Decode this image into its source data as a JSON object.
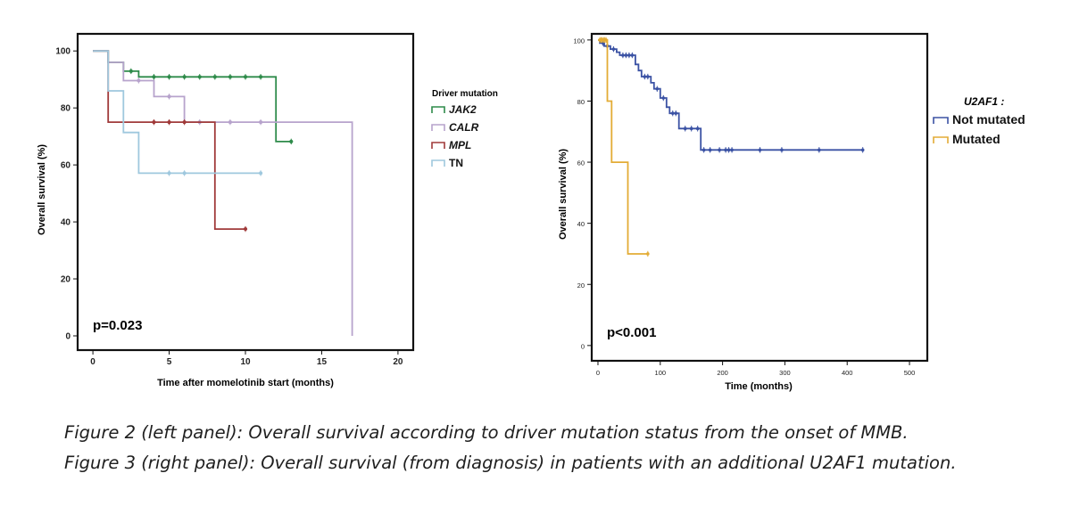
{
  "chart_data": [
    {
      "type": "line",
      "subtype": "kaplan-meier",
      "title": "",
      "xlabel": "Time after momelotinib start (months)",
      "ylabel": "Overall survival (%)",
      "xlim": [
        -1,
        21
      ],
      "ylim": [
        -5,
        106
      ],
      "xticks": [
        0,
        5,
        10,
        15,
        20
      ],
      "yticks": [
        0,
        20,
        40,
        60,
        80,
        100
      ],
      "grid": false,
      "legend_title": "Driver mutation",
      "legend_position": "right-outside",
      "annotation": "p=0.023",
      "series": [
        {
          "name": "JAK2",
          "color": "#2e8b4a",
          "steps": [
            [
              0,
              100
            ],
            [
              1,
              100
            ],
            [
              1,
              96
            ],
            [
              2,
              96
            ],
            [
              2,
              92.9
            ],
            [
              3,
              92.9
            ],
            [
              3,
              90.9
            ],
            [
              12,
              90.9
            ],
            [
              12,
              68.2
            ],
            [
              13,
              68.2
            ]
          ],
          "censors": [
            [
              2.5,
              92.9
            ],
            [
              4,
              90.9
            ],
            [
              5,
              90.9
            ],
            [
              6,
              90.9
            ],
            [
              7,
              90.9
            ],
            [
              8,
              90.9
            ],
            [
              9,
              90.9
            ],
            [
              10,
              90.9
            ],
            [
              11,
              90.9
            ],
            [
              13,
              68.2
            ]
          ]
        },
        {
          "name": "CALR",
          "color": "#b7a3cc",
          "steps": [
            [
              0,
              100
            ],
            [
              1,
              100
            ],
            [
              1,
              96
            ],
            [
              2,
              96
            ],
            [
              2,
              89.6
            ],
            [
              4,
              89.6
            ],
            [
              4,
              84
            ],
            [
              6,
              84
            ],
            [
              6,
              75
            ],
            [
              17,
              75
            ],
            [
              17,
              0
            ]
          ],
          "censors": [
            [
              3,
              89.6
            ],
            [
              5,
              84
            ],
            [
              7,
              75
            ],
            [
              9,
              75
            ],
            [
              11,
              75
            ]
          ]
        },
        {
          "name": "MPL",
          "color": "#a03a3a",
          "steps": [
            [
              0,
              100
            ],
            [
              1,
              100
            ],
            [
              1,
              75
            ],
            [
              8,
              75
            ],
            [
              8,
              37.5
            ],
            [
              10,
              37.5
            ]
          ],
          "censors": [
            [
              4,
              75
            ],
            [
              5,
              75
            ],
            [
              6,
              75
            ],
            [
              10,
              37.5
            ]
          ]
        },
        {
          "name": "TN",
          "color": "#9fc8de",
          "steps": [
            [
              0,
              100
            ],
            [
              1,
              100
            ],
            [
              1,
              86
            ],
            [
              2,
              86
            ],
            [
              2,
              71.4
            ],
            [
              3,
              71.4
            ],
            [
              3,
              57.1
            ],
            [
              11,
              57.1
            ]
          ],
          "censors": [
            [
              5,
              57.1
            ],
            [
              6,
              57.1
            ],
            [
              11,
              57.1
            ]
          ]
        }
      ]
    },
    {
      "type": "line",
      "subtype": "kaplan-meier",
      "title": "",
      "xlabel": "Time (months)",
      "ylabel": "Overall survival (%)",
      "xlim": [
        -10,
        520
      ],
      "ylim": [
        -5,
        102
      ],
      "xticks": [
        0,
        100,
        200,
        300,
        400,
        500
      ],
      "yticks": [
        0,
        20,
        40,
        60,
        80,
        100
      ],
      "grid": false,
      "legend_title": "U2AF1 :",
      "legend_position": "right-outside",
      "annotation": "p<0.001",
      "series": [
        {
          "name": "Not mutated",
          "color": "#3b52a4",
          "steps": [
            [
              0,
              100
            ],
            [
              3,
              100
            ],
            [
              3,
              99
            ],
            [
              10,
              99
            ],
            [
              10,
              98
            ],
            [
              20,
              98
            ],
            [
              20,
              97
            ],
            [
              30,
              97
            ],
            [
              30,
              96
            ],
            [
              35,
              96
            ],
            [
              35,
              95
            ],
            [
              60,
              95
            ],
            [
              60,
              92
            ],
            [
              65,
              92
            ],
            [
              65,
              90
            ],
            [
              70,
              90
            ],
            [
              70,
              88
            ],
            [
              85,
              88
            ],
            [
              85,
              86
            ],
            [
              90,
              86
            ],
            [
              90,
              84
            ],
            [
              100,
              84
            ],
            [
              100,
              81
            ],
            [
              110,
              81
            ],
            [
              110,
              78
            ],
            [
              115,
              78
            ],
            [
              115,
              76
            ],
            [
              130,
              76
            ],
            [
              130,
              71
            ],
            [
              165,
              71
            ],
            [
              165,
              64
            ],
            [
              425,
              64
            ]
          ],
          "censors": [
            [
              8,
              99
            ],
            [
              15,
              98
            ],
            [
              25,
              97
            ],
            [
              40,
              95
            ],
            [
              45,
              95
            ],
            [
              50,
              95
            ],
            [
              55,
              95
            ],
            [
              75,
              88
            ],
            [
              80,
              88
            ],
            [
              95,
              84
            ],
            [
              105,
              81
            ],
            [
              120,
              76
            ],
            [
              125,
              76
            ],
            [
              140,
              71
            ],
            [
              150,
              71
            ],
            [
              160,
              71
            ],
            [
              170,
              64
            ],
            [
              180,
              64
            ],
            [
              195,
              64
            ],
            [
              205,
              64
            ],
            [
              210,
              64
            ],
            [
              215,
              64
            ],
            [
              260,
              64
            ],
            [
              295,
              64
            ],
            [
              355,
              64
            ],
            [
              425,
              64
            ]
          ]
        },
        {
          "name": "Mutated",
          "color": "#e3ac36",
          "steps": [
            [
              0,
              100
            ],
            [
              15,
              100
            ],
            [
              15,
              80
            ],
            [
              22,
              80
            ],
            [
              22,
              60
            ],
            [
              48,
              60
            ],
            [
              48,
              30
            ],
            [
              80,
              30
            ]
          ],
          "censors": [
            [
              3,
              100
            ],
            [
              5,
              100
            ],
            [
              7,
              100
            ],
            [
              9,
              100
            ],
            [
              11,
              100
            ],
            [
              13,
              100
            ],
            [
              80,
              30
            ]
          ]
        }
      ]
    }
  ],
  "captions": [
    "Figure 2 (left panel): Overall survival according to driver mutation status from the onset of MMB.",
    "Figure 3 (right panel): Overall survival (from diagnosis) in patients with an additional U2AF1 mutation."
  ]
}
